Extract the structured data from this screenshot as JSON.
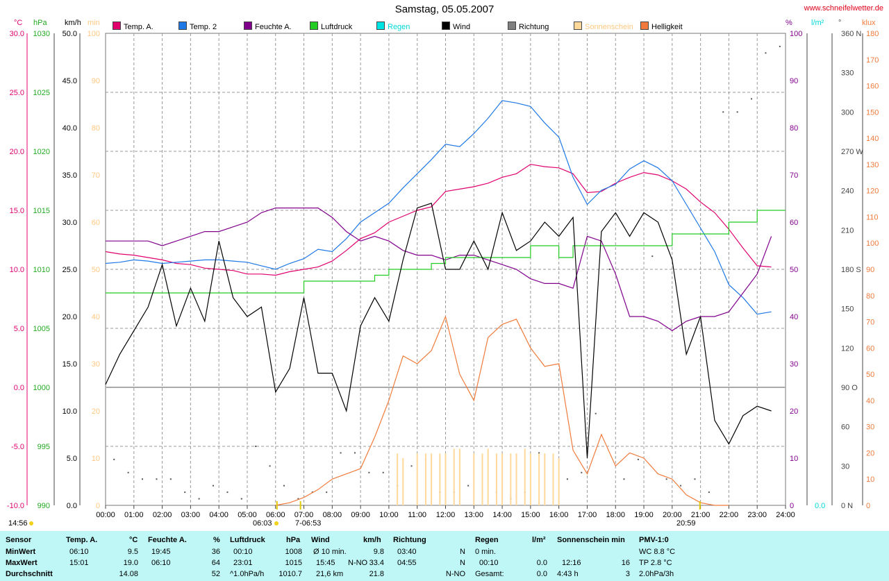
{
  "header": {
    "title": "Samstag, 05.05.2007",
    "url": "www.schneifelwetter.de"
  },
  "units": {
    "left": [
      "°C",
      "hPa",
      "km/h",
      "min"
    ],
    "right": [
      "%",
      "l/m²",
      "°",
      "klux"
    ]
  },
  "legend": [
    {
      "label": "Temp. A.",
      "color": "#e0006e"
    },
    {
      "label": "Temp. 2",
      "color": "#1e78e6"
    },
    {
      "label": "Feuchte A.",
      "color": "#80008c"
    },
    {
      "label": "Luftdruck",
      "color": "#22cc22"
    },
    {
      "label": "Regen",
      "color": "#00e4e4"
    },
    {
      "label": "Wind",
      "color": "#000000"
    },
    {
      "label": "Richtung",
      "color": "#808080"
    },
    {
      "label": "Sonnenschein",
      "color": "#ffd89a"
    },
    {
      "label": "Helligkeit",
      "color": "#f07b3c"
    }
  ],
  "axes": {
    "temp_ticks": [
      "30.0",
      "25.0",
      "20.0",
      "15.0",
      "10.0",
      "5.0",
      "0.0",
      "-5.0",
      "-10.0"
    ],
    "hpa_ticks": [
      "1030",
      "1025",
      "1020",
      "1015",
      "1010",
      "1005",
      "1000",
      "995",
      "990"
    ],
    "wind_ticks": [
      "50.0",
      "45.0",
      "40.0",
      "35.0",
      "30.0",
      "25.0",
      "20.0",
      "15.0",
      "10.0",
      "5.0",
      "0.0"
    ],
    "min_ticks": [
      "100",
      "90",
      "80",
      "70",
      "60",
      "50",
      "40",
      "30",
      "20",
      "10",
      "0"
    ],
    "hum_ticks": [
      "100",
      "90",
      "80",
      "70",
      "60",
      "50",
      "40",
      "30",
      "20",
      "10",
      "0"
    ],
    "rain_ticks": [
      "0.0"
    ],
    "dir_ticks": [
      "360 N",
      "330",
      "300",
      "270 W",
      "240",
      "210",
      "180 S",
      "150",
      "120",
      "90 O",
      "60",
      "30",
      "0 N"
    ],
    "klux_ticks": [
      "180",
      "170",
      "160",
      "150",
      "140",
      "130",
      "120",
      "110",
      "100",
      "90",
      "80",
      "70",
      "60",
      "50",
      "40",
      "30",
      "20",
      "10",
      "0"
    ],
    "x_ticks": [
      "00:00",
      "01:00",
      "02:00",
      "03:00",
      "04:00",
      "05:00",
      "06:00",
      "07:00",
      "08:00",
      "09:00",
      "10:00",
      "11:00",
      "12:00",
      "13:00",
      "14:00",
      "15:00",
      "16:00",
      "17:00",
      "18:00",
      "19:00",
      "20:00",
      "21:00",
      "22:00",
      "23:00",
      "24:00"
    ]
  },
  "events": {
    "time_now": "14:56",
    "sunrise": "06:03",
    "sunrise2": "7-06:53",
    "sunset": "20:59"
  },
  "colors": {
    "temp": "#e0006e",
    "temp2": "#1e78e6",
    "hum": "#80008c",
    "press": "#22cc22",
    "wind": "#000000",
    "dir": "#555555",
    "sun": "#ffd89a",
    "lux": "#f07b3c",
    "hpa_axis": "#22aa22",
    "min_axis": "#ffc880",
    "rain_axis": "#00d8d8",
    "url": "#e0001b"
  },
  "chart_data": {
    "type": "line",
    "x_unit": "hour",
    "series": [
      {
        "name": "Temp. A.",
        "unit": "°C",
        "x": [
          0,
          0.5,
          1,
          1.5,
          2,
          2.5,
          3,
          3.5,
          4,
          4.5,
          5,
          5.5,
          6,
          6.5,
          7,
          7.5,
          8,
          8.5,
          9,
          9.5,
          10,
          10.5,
          11,
          11.5,
          12,
          12.5,
          13,
          13.5,
          14,
          14.5,
          15,
          15.5,
          16,
          16.5,
          17,
          17.5,
          18,
          18.5,
          19,
          19.5,
          20,
          20.5,
          21,
          21.5,
          22,
          22.5,
          23,
          23.5
        ],
        "y": [
          11.5,
          11.3,
          11.2,
          11.0,
          10.8,
          10.5,
          10.4,
          10.1,
          10.0,
          9.9,
          9.6,
          9.6,
          9.5,
          9.8,
          10.0,
          10.2,
          10.7,
          11.6,
          12.6,
          13.1,
          14.0,
          14.5,
          15.0,
          15.3,
          16.6,
          16.8,
          17.0,
          17.3,
          17.8,
          18.1,
          18.9,
          18.7,
          18.6,
          18.1,
          16.5,
          16.6,
          17.3,
          17.8,
          18.2,
          18.0,
          17.5,
          16.8,
          15.7,
          14.8,
          13.4,
          11.8,
          10.3,
          10.2
        ]
      },
      {
        "name": "Temp. 2",
        "unit": "°C",
        "x": [
          0,
          0.5,
          1,
          1.5,
          2,
          2.5,
          3,
          3.5,
          4,
          4.5,
          5,
          5.5,
          6,
          6.5,
          7,
          7.5,
          8,
          8.5,
          9,
          9.5,
          10,
          10.5,
          11,
          11.5,
          12,
          12.5,
          13,
          13.5,
          14,
          14.5,
          15,
          15.5,
          16,
          16.5,
          17,
          17.5,
          18,
          18.5,
          19,
          19.5,
          20,
          20.5,
          21,
          21.5,
          22,
          22.5,
          23,
          23.5
        ],
        "y": [
          10.5,
          10.6,
          10.8,
          10.7,
          10.5,
          10.6,
          10.7,
          10.8,
          10.8,
          10.7,
          10.6,
          10.3,
          10.0,
          10.5,
          10.9,
          11.7,
          11.5,
          12.6,
          14.0,
          14.8,
          15.6,
          16.9,
          18.1,
          19.3,
          20.6,
          20.4,
          21.5,
          22.8,
          24.3,
          24.1,
          23.8,
          22.4,
          21.2,
          17.8,
          15.5,
          16.7,
          17.2,
          18.5,
          19.2,
          18.6,
          17.5,
          15.5,
          13.5,
          11.5,
          8.7,
          7.6,
          6.2,
          6.4
        ]
      },
      {
        "name": "Feuchte A.",
        "unit": "%",
        "x": [
          0,
          0.5,
          1,
          1.5,
          2,
          2.5,
          3,
          3.5,
          4,
          4.5,
          5,
          5.5,
          6,
          6.5,
          7,
          7.5,
          8,
          8.5,
          9,
          9.5,
          10,
          10.5,
          11,
          11.5,
          12,
          12.5,
          13,
          13.5,
          14,
          14.5,
          15,
          15.5,
          16,
          16.5,
          17,
          17.5,
          18,
          18.5,
          19,
          19.5,
          20,
          20.5,
          21,
          21.5,
          22,
          22.5,
          23,
          23.5
        ],
        "y": [
          56,
          56,
          56,
          56,
          55,
          56,
          57,
          58,
          58,
          59,
          60,
          62,
          63,
          63,
          63,
          63,
          61,
          58,
          56,
          57,
          56,
          54,
          53,
          53,
          52,
          53,
          53,
          52,
          51,
          50,
          48,
          47,
          47,
          46,
          57,
          56,
          49,
          40,
          40,
          39,
          37,
          39,
          40,
          40,
          41,
          45,
          49,
          57
        ]
      },
      {
        "name": "Luftdruck",
        "unit": "hPa",
        "x": [
          0,
          0.5,
          1,
          1.5,
          2,
          2.5,
          3,
          3.5,
          4,
          4.5,
          5,
          5.5,
          6,
          6.5,
          7,
          7.5,
          8,
          8.5,
          9,
          9.5,
          10,
          10.5,
          11,
          11.5,
          12,
          12.5,
          13,
          13.5,
          14,
          14.5,
          15,
          15.5,
          16,
          16.5,
          17,
          17.5,
          18,
          18.5,
          19,
          19.5,
          20,
          20.5,
          21,
          21.5,
          22,
          22.5,
          23,
          23.5
        ],
        "y": [
          1008,
          1008,
          1008,
          1008,
          1008,
          1008,
          1008,
          1008,
          1008,
          1008,
          1008,
          1008,
          1008,
          1008,
          1009,
          1009,
          1009,
          1009,
          1009,
          1009.5,
          1010,
          1010,
          1010,
          1010.5,
          1011,
          1011,
          1011,
          1011,
          1011,
          1011,
          1012,
          1012,
          1011,
          1012,
          1012,
          1012,
          1012,
          1012,
          1012,
          1012,
          1013,
          1013,
          1013,
          1013,
          1014,
          1014,
          1015,
          1015
        ]
      },
      {
        "name": "Wind",
        "unit": "km/h",
        "x": [
          0,
          0.5,
          1,
          1.5,
          2,
          2.5,
          3,
          3.5,
          4,
          4.5,
          5,
          5.5,
          6,
          6.5,
          7,
          7.5,
          8,
          8.5,
          9,
          9.5,
          10,
          10.5,
          11,
          11.5,
          12,
          12.5,
          13,
          13.5,
          14,
          14.5,
          15,
          15.5,
          16,
          16.5,
          17,
          17.5,
          18,
          18.5,
          19,
          19.5,
          20,
          20.5,
          21,
          21.5,
          22,
          22.5,
          23,
          23.5
        ],
        "y": [
          12.8,
          16.0,
          18.5,
          21.0,
          25.5,
          19.0,
          23.0,
          19.5,
          28.0,
          22.0,
          20.0,
          21.0,
          12.0,
          14.5,
          22.0,
          14.0,
          14.0,
          10.0,
          19.0,
          22.0,
          19.5,
          26.0,
          31.5,
          32.0,
          25.0,
          25.0,
          28.0,
          25.0,
          31.0,
          27.0,
          28.0,
          30.0,
          28.5,
          30.5,
          5.0,
          29.0,
          31.0,
          28.5,
          31.0,
          30.0,
          26.0,
          16.0,
          20.0,
          9.0,
          6.5,
          9.5,
          10.5,
          10.0
        ]
      },
      {
        "name": "Richtung",
        "unit": "°",
        "x": [
          0.3,
          0.8,
          1.3,
          1.8,
          2.3,
          2.8,
          3.3,
          3.8,
          4.3,
          4.8,
          5.3,
          5.8,
          6.3,
          6.8,
          7.3,
          7.8,
          8.3,
          8.8,
          9.3,
          9.8,
          10.3,
          10.8,
          11.3,
          11.8,
          12.3,
          12.8,
          13.3,
          13.8,
          14.3,
          14.8,
          15.3,
          15.8,
          16.3,
          16.8,
          17.3,
          17.8,
          18.3,
          18.8,
          19.3,
          19.8,
          20.3,
          20.8,
          21.3,
          21.8,
          22.3,
          22.8,
          23.3,
          23.8
        ],
        "y": [
          35,
          25,
          20,
          20,
          20,
          10,
          5,
          15,
          10,
          5,
          45,
          30,
          15,
          5,
          10,
          10,
          40,
          40,
          25,
          25,
          15,
          30,
          35,
          10,
          10,
          15,
          10,
          10,
          5,
          10,
          40,
          25,
          20,
          25,
          70,
          180,
          20,
          35,
          190,
          20,
          15,
          20,
          10,
          300,
          300,
          310,
          345,
          350
        ]
      },
      {
        "name": "Sonnenschein",
        "unit": "min",
        "x": [
          10.3,
          10.5,
          11,
          11.3,
          11.5,
          11.8,
          12,
          12.3,
          12.5,
          13,
          13.3,
          13.5,
          13.8,
          14,
          14.3,
          14.5,
          14.8,
          15,
          15.3,
          15.5,
          15.8,
          16
        ],
        "y": [
          11,
          10,
          11,
          11,
          11,
          11,
          11,
          12,
          12,
          11,
          11,
          12,
          11,
          11,
          11,
          11,
          12,
          11,
          11,
          11,
          11,
          10
        ]
      },
      {
        "name": "Helligkeit",
        "unit": "klux",
        "x": [
          6,
          6.5,
          7,
          7.5,
          8,
          8.5,
          9,
          9.5,
          10,
          10.5,
          11,
          11.5,
          12,
          12.5,
          13,
          13.5,
          14,
          14.5,
          15,
          15.5,
          16,
          16.5,
          17,
          17.5,
          18,
          18.5,
          19,
          19.5,
          20,
          20.5,
          21,
          21.5,
          22
        ],
        "y": [
          0,
          1,
          3,
          6,
          10,
          12,
          14,
          26,
          40,
          57,
          54,
          59,
          72,
          50,
          40,
          64,
          69,
          71,
          60,
          53,
          54,
          21,
          12,
          27,
          15,
          20,
          18,
          12,
          10,
          4,
          1,
          0,
          0
        ]
      }
    ],
    "xlim": [
      0,
      24
    ],
    "grid": true
  },
  "stats": {
    "headers": {
      "sensor": "Sensor",
      "temp": "Temp. A.",
      "temp_unit": "°C",
      "hum": "Feuchte A.",
      "hum_unit": "%",
      "press": "Luftdruck",
      "press_unit": "hPa",
      "wind": "Wind",
      "wind_unit": "km/h",
      "dir": "Richtung",
      "rain": "Regen",
      "rain_unit": "l/m²",
      "sun": "Sonnenschein min",
      "pmv": "PMV-1:0"
    },
    "row_labels": [
      "MinWert",
      "MaxWert",
      "Durchschnitt"
    ],
    "temp": [
      [
        "06:10",
        "9.5"
      ],
      [
        "15:01",
        "19.0"
      ],
      [
        "",
        "14.08"
      ]
    ],
    "hum": [
      [
        "19:45",
        "36"
      ],
      [
        "06:10",
        "64"
      ],
      [
        "",
        "52"
      ]
    ],
    "press": [
      [
        "00:10",
        "1008"
      ],
      [
        "23:01",
        "1015"
      ],
      [
        "^1.0hPa/h",
        "1010.7"
      ]
    ],
    "wind": [
      [
        "Ø 10 min.",
        "",
        "9.8"
      ],
      [
        "15:45",
        "N-NO",
        "33.4"
      ],
      [
        "21,6 km",
        "",
        "21.8"
      ]
    ],
    "dir": [
      [
        "03:40",
        "N"
      ],
      [
        "04:55",
        "N"
      ],
      [
        "",
        "N-NO"
      ]
    ],
    "rain": [
      [
        "0 min.",
        ""
      ],
      [
        "00:10",
        "0.0"
      ],
      [
        "Gesamt:",
        "0.0"
      ]
    ],
    "sun": [
      [
        "",
        ""
      ],
      [
        "12:16",
        "16"
      ],
      [
        "4:43 h",
        "3"
      ]
    ],
    "pmv": [
      "WC 8.8 °C",
      "TP 2.8 °C",
      "2.0hPa/3h"
    ]
  }
}
